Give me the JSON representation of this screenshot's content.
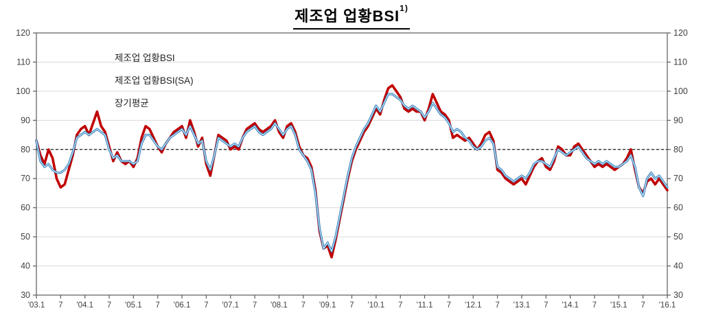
{
  "title": {
    "text": "제조업 업황BSI",
    "superscript": "1)"
  },
  "legend": [
    {
      "label": "제조업 업황BSI",
      "type": "solid",
      "color": "#c00000"
    },
    {
      "label": "제조업 업황BSI(SA)",
      "type": "double",
      "color": "#2e79b9",
      "inner_color": "#cdebf7"
    },
    {
      "label": "장기평균",
      "type": "dashed",
      "color": "#1a1a1a"
    }
  ],
  "colors": {
    "series_bsi": "#c00000",
    "series_bsi_sa_outer": "#2e79b9",
    "series_bsi_sa_inner": "#cdebf7",
    "long_term_average": "#1a1a1a",
    "gridline": "#d9d9d9",
    "axis": "#595959",
    "tick_text": "#404040"
  },
  "chart_data": {
    "type": "line",
    "title": "제조업 업황BSI",
    "frequency": "monthly",
    "x_start": "2003.1",
    "x_end": "2016.1",
    "x_tick_labels": [
      "'03.1",
      "7",
      "'04.1",
      "7",
      "'05.1",
      "7",
      "'06.1",
      "7",
      "'07.1",
      "7",
      "'08.1",
      "7",
      "'09.1",
      "7",
      "'10.1",
      "7",
      "'11.1",
      "7",
      "'12.1",
      "7",
      "'13.1",
      "7",
      "'14.1",
      "7",
      "'15.1",
      "7",
      "'16.1"
    ],
    "x_tick_month_indices": [
      0,
      6,
      12,
      18,
      24,
      30,
      36,
      42,
      48,
      54,
      60,
      66,
      72,
      78,
      84,
      90,
      96,
      102,
      108,
      114,
      120,
      126,
      132,
      138,
      144,
      150,
      156
    ],
    "y_ticks": [
      30,
      40,
      50,
      60,
      70,
      80,
      90,
      100,
      110,
      120
    ],
    "ylim": [
      30,
      120
    ],
    "grid": "horizontal",
    "legend_position": "top-left-inside",
    "long_term_average": 80,
    "series": [
      {
        "name": "제조업 업황BSI",
        "color": "#c00000",
        "values": [
          83,
          78,
          75,
          80,
          77,
          70,
          67,
          68,
          73,
          78,
          85,
          87,
          88,
          85,
          89,
          93,
          88,
          86,
          81,
          76,
          79,
          76,
          75,
          76,
          74,
          77,
          84,
          88,
          87,
          84,
          81,
          79,
          82,
          84,
          86,
          87,
          88,
          84,
          90,
          86,
          81,
          84,
          75,
          71,
          78,
          85,
          84,
          83,
          80,
          81,
          80,
          84,
          87,
          88,
          89,
          87,
          86,
          87,
          88,
          90,
          86,
          84,
          88,
          89,
          86,
          81,
          78,
          77,
          74,
          66,
          52,
          46,
          47,
          43,
          49,
          56,
          63,
          70,
          76,
          80,
          83,
          86,
          88,
          91,
          94,
          92,
          97,
          101,
          102,
          100,
          98,
          94,
          93,
          94,
          93,
          93,
          90,
          94,
          99,
          96,
          93,
          92,
          90,
          84,
          85,
          84,
          83,
          84,
          82,
          80,
          82,
          85,
          86,
          83,
          73,
          72,
          70,
          69,
          68,
          69,
          70,
          68,
          71,
          74,
          76,
          77,
          74,
          73,
          76,
          81,
          80,
          78,
          78,
          81,
          82,
          80,
          78,
          76,
          74,
          75,
          74,
          75,
          74,
          73,
          74,
          75,
          77,
          80,
          73,
          67,
          65,
          69,
          70,
          68,
          70,
          68,
          66
        ]
      },
      {
        "name": "제조업 업황BSI(SA)",
        "color": "#2e79b9",
        "values": [
          83,
          76,
          74,
          75,
          73,
          72,
          72,
          73,
          75,
          79,
          84,
          85,
          86,
          85,
          86,
          87,
          86,
          85,
          80,
          77,
          78,
          76,
          76,
          76,
          75,
          76,
          82,
          85,
          85,
          83,
          81,
          80,
          82,
          84,
          85,
          86,
          87,
          85,
          88,
          85,
          82,
          83,
          76,
          73,
          78,
          84,
          83,
          82,
          81,
          82,
          81,
          84,
          86,
          87,
          88,
          86,
          85,
          86,
          87,
          89,
          87,
          85,
          87,
          88,
          85,
          80,
          78,
          76,
          73,
          65,
          53,
          46,
          48,
          45,
          50,
          57,
          64,
          71,
          77,
          81,
          84,
          87,
          89,
          92,
          95,
          93,
          96,
          99,
          99,
          98,
          97,
          95,
          94,
          95,
          94,
          93,
          91,
          93,
          96,
          94,
          92,
          91,
          89,
          86,
          87,
          86,
          84,
          83,
          81,
          80,
          81,
          83,
          84,
          82,
          74,
          73,
          71,
          70,
          69,
          70,
          71,
          70,
          72,
          75,
          76,
          76,
          75,
          74,
          77,
          80,
          79,
          78,
          79,
          80,
          81,
          79,
          77,
          76,
          75,
          76,
          75,
          76,
          75,
          74,
          74,
          75,
          76,
          78,
          74,
          67,
          64,
          70,
          72,
          70,
          71,
          69,
          67
        ]
      }
    ]
  }
}
